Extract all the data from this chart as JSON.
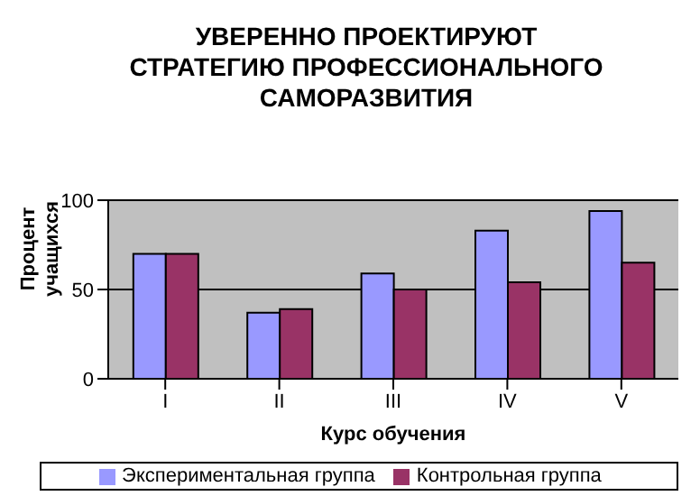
{
  "chart_data": {
    "type": "bar",
    "title": "УВЕРЕННО ПРОЕКТИРУЮТ СТРАТЕГИЮ ПРОФЕССИОНАЛЬНОГО САМОРАЗВИТИЯ",
    "xlabel": "Курс обучения",
    "ylabel": "Процент учащихся",
    "categories": [
      "I",
      "II",
      "III",
      "IV",
      "V"
    ],
    "series": [
      {
        "name": "Экспериментальная группа",
        "color": "#9999ff",
        "values": [
          70,
          37,
          59,
          83,
          94
        ]
      },
      {
        "name": "Контрольная группа",
        "color": "#993366",
        "values": [
          70,
          39,
          50,
          54,
          65
        ]
      }
    ],
    "ylim": [
      0,
      100
    ],
    "yticks": [
      0,
      50,
      100
    ],
    "grid": "y",
    "legend": "bottom"
  }
}
